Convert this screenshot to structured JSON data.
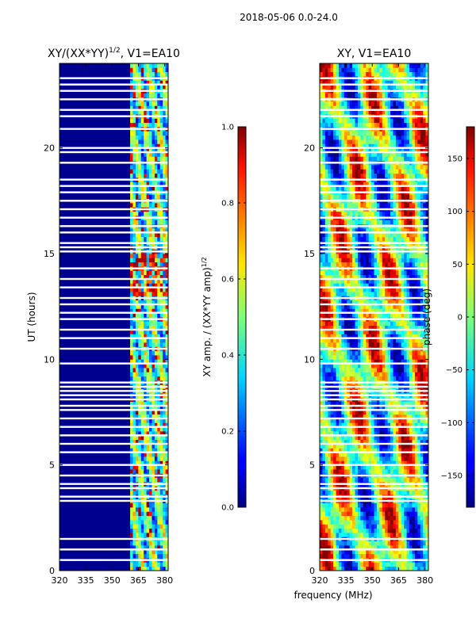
{
  "figure_title": "2018-05-06 0.0-24.0",
  "shared_xlabel": "frequency (MHz)",
  "chart_data": [
    {
      "type": "heatmap",
      "title": "XY/(XX*YY)",
      "title_sup": "1/2",
      "title_suffix": ", V1=EA10",
      "xlabel": "",
      "ylabel": "UT (hours)",
      "x_ticks": [
        320,
        335,
        350,
        365,
        380
      ],
      "y_ticks": [
        0,
        5,
        10,
        15,
        20
      ],
      "xlim": [
        320,
        382
      ],
      "ylim": [
        0,
        24
      ],
      "band_start_mhz": 360,
      "colorbar": {
        "label": "XY amp. / (XX*YY amp)",
        "label_sup": "1/2",
        "range": [
          0.0,
          1.0
        ],
        "ticks": [
          "0.0",
          "0.2",
          "0.4",
          "0.6",
          "0.8",
          "1.0"
        ],
        "tick_values": [
          0.0,
          0.2,
          0.4,
          0.6,
          0.8,
          1.0
        ],
        "colormap": "jet"
      }
    },
    {
      "type": "heatmap",
      "title": "XY, V1=EA10",
      "xlabel": "frequency (MHz)",
      "ylabel": "",
      "x_ticks": [
        320,
        335,
        350,
        365,
        380
      ],
      "y_ticks": [
        0,
        5,
        10,
        15,
        20
      ],
      "xlim": [
        320,
        382
      ],
      "ylim": [
        0,
        24
      ],
      "colorbar": {
        "label": "phase (deg)",
        "range": [
          -180,
          180
        ],
        "ticks": [
          "−150",
          "−100",
          "−50",
          "0",
          "50",
          "100",
          "150"
        ],
        "tick_values": [
          -150,
          -100,
          -50,
          0,
          50,
          100,
          150
        ],
        "colormap": "jet"
      }
    }
  ],
  "flagged_gaps_ut": [
    0.5,
    1.0,
    1.5,
    3.3,
    3.5,
    3.9,
    4.1,
    4.5,
    5.0,
    5.6,
    6.0,
    6.4,
    6.8,
    7.2,
    7.6,
    7.8,
    8.1,
    8.3,
    8.5,
    8.7,
    8.9,
    9.8,
    10.5,
    11.0,
    11.4,
    11.9,
    12.2,
    12.6,
    12.9,
    13.4,
    13.8,
    14.3,
    15.1,
    15.3,
    15.5,
    16.0,
    16.3,
    16.7,
    17.1,
    17.5,
    17.9,
    18.2,
    18.5,
    19.3,
    19.8,
    20.0,
    20.9,
    21.5,
    21.8,
    22.3,
    22.7,
    23.0,
    23.3
  ]
}
